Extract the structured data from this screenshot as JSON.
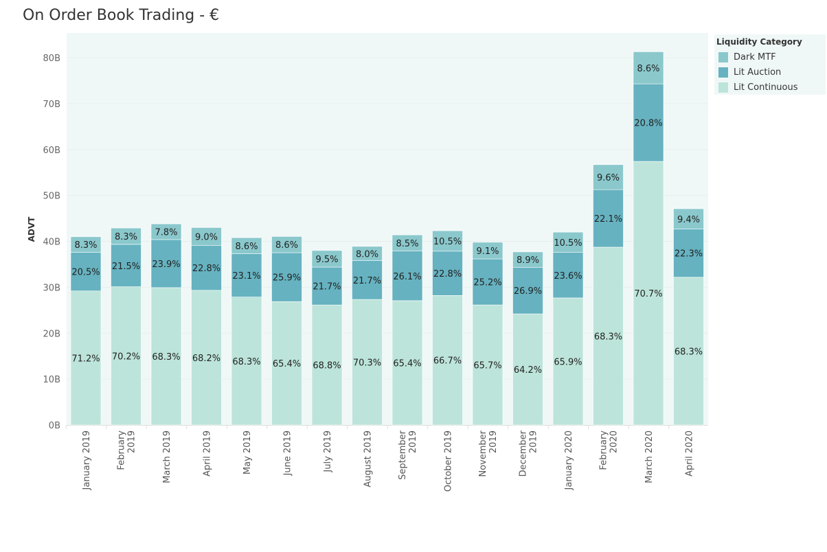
{
  "chart_data": {
    "type": "bar",
    "stacked": true,
    "title": "On Order Book Trading - €",
    "xlabel": "",
    "ylabel": "ADVT",
    "ylim": [
      0,
      85
    ],
    "yticks": [
      0,
      10,
      20,
      30,
      40,
      50,
      60,
      70,
      80
    ],
    "ytick_labels": [
      "0B",
      "10B",
      "20B",
      "30B",
      "40B",
      "50B",
      "60B",
      "70B",
      "80B"
    ],
    "grid": true,
    "legend": {
      "title": "Liquidity Category",
      "placement": "right"
    },
    "categories": [
      "January 2019",
      "February 2019",
      "March 2019",
      "April 2019",
      "May 2019",
      "June 2019",
      "July 2019",
      "August 2019",
      "September 2019",
      "October 2019",
      "November 2019",
      "December 2019",
      "January 2020",
      "February 2020",
      "March 2020",
      "April 2020"
    ],
    "totals_billion": [
      41.0,
      42.9,
      43.8,
      43.0,
      40.8,
      41.1,
      38.0,
      38.9,
      41.4,
      42.3,
      39.8,
      37.7,
      42.0,
      56.7,
      81.2,
      47.1
    ],
    "series": [
      {
        "name": "Lit Continuous",
        "color": "#bde4da",
        "percent": [
          71.2,
          70.2,
          68.3,
          68.2,
          68.3,
          65.4,
          68.8,
          70.3,
          65.4,
          66.7,
          65.7,
          64.2,
          65.9,
          68.3,
          70.7,
          68.3
        ]
      },
      {
        "name": "Lit Auction",
        "color": "#66b2c0",
        "percent": [
          20.5,
          21.5,
          23.9,
          22.8,
          23.1,
          25.9,
          21.7,
          21.7,
          26.1,
          22.8,
          25.2,
          26.9,
          23.6,
          22.1,
          20.8,
          22.3
        ]
      },
      {
        "name": "Dark MTF",
        "color": "#8ac8cc",
        "percent": [
          8.3,
          8.3,
          7.8,
          9.0,
          8.6,
          8.6,
          9.5,
          8.0,
          8.5,
          10.5,
          9.1,
          8.9,
          10.5,
          9.6,
          8.6,
          9.4
        ]
      }
    ]
  }
}
